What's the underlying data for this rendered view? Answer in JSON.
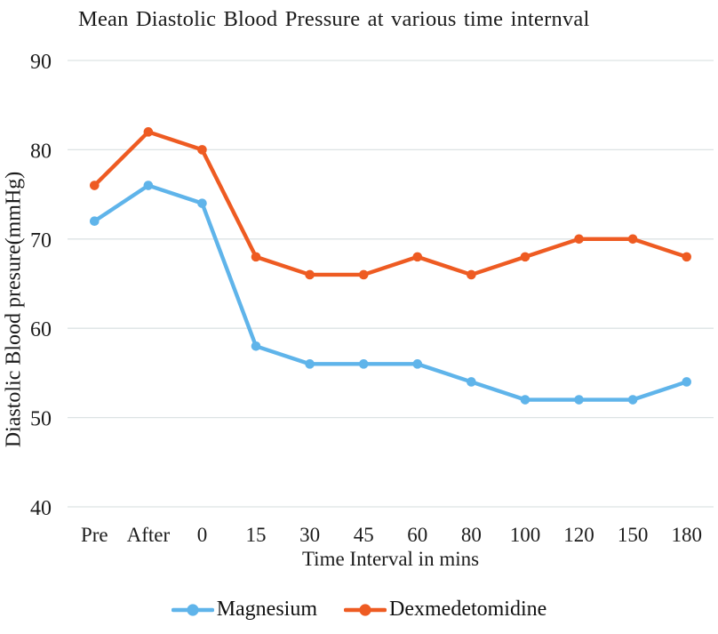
{
  "chart": {
    "colors": {
      "gridline": "#dde3e4",
      "text": "#1c1c1c",
      "background": "#ffffff"
    }
  },
  "chart_data": {
    "type": "line",
    "title": "Mean Diastolic Blood Pressure at various time internval",
    "xlabel": "Time Interval in mins",
    "ylabel": "Diastolic Blood presure(mmHg)",
    "categories": [
      "Pre",
      "After",
      "0",
      "15",
      "30",
      "45",
      "60",
      "80",
      "100",
      "120",
      "150",
      "180"
    ],
    "series": [
      {
        "name": "Magnesium",
        "color": "#5fb4ea",
        "values": [
          72,
          76,
          74,
          58,
          56,
          56,
          56,
          54,
          52,
          52,
          52,
          54
        ]
      },
      {
        "name": "Dexmedetomidine",
        "color": "#ee5b22",
        "values": [
          76,
          82,
          80,
          68,
          66,
          66,
          68,
          66,
          68,
          70,
          70,
          68
        ]
      }
    ],
    "ylim": [
      40,
      90
    ],
    "y_ticks": [
      90,
      80,
      70,
      60,
      50,
      40
    ],
    "grid": true,
    "legend_position": "bottom",
    "marker": "circle"
  }
}
